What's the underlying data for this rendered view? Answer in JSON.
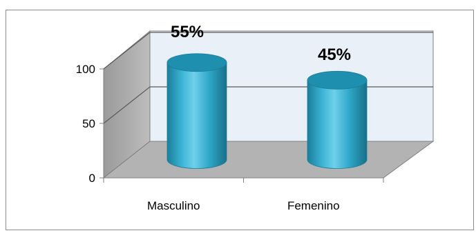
{
  "chart_data": {
    "type": "bar",
    "style": "3d-cylinder",
    "categories": [
      "Masculino",
      "Femenino"
    ],
    "values": [
      55,
      45
    ],
    "data_labels": [
      "55%",
      "45%"
    ],
    "yticks": [
      "0",
      "50",
      "100"
    ],
    "ylim": [
      0,
      100
    ],
    "grid": true,
    "legend": "none",
    "colors": {
      "bar": "#2fa8c9",
      "bar_dark": "#1a7e9a",
      "bar_light": "#6fd0ea",
      "bar_top": "#1f8fb0",
      "back_wall": "#e9f0f8",
      "side_wall": "#a6a6a6",
      "floor": "#b3b3b3",
      "grid": "#595959"
    }
  }
}
